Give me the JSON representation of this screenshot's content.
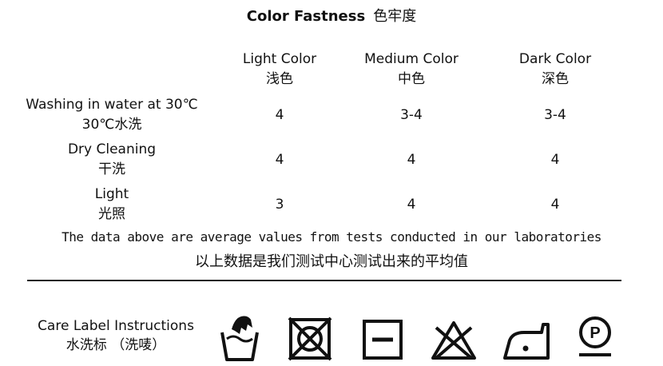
{
  "title": {
    "en": "Color Fastness",
    "zh": "色牢度"
  },
  "table": {
    "headers": [
      {
        "en": "",
        "zh": ""
      },
      {
        "en": "Light Color",
        "zh": "浅色"
      },
      {
        "en": "Medium Color",
        "zh": "中色"
      },
      {
        "en": "Dark Color",
        "zh": "深色"
      }
    ],
    "rows": [
      {
        "en": "Washing in water at 30℃",
        "zh": "30℃水洗",
        "values": [
          "4",
          "3-4",
          "3-4"
        ]
      },
      {
        "en": "Dry Cleaning",
        "zh": "干洗",
        "values": [
          "4",
          "4",
          "4"
        ]
      },
      {
        "en": "Light",
        "zh": "光照",
        "values": [
          "3",
          "4",
          "4"
        ]
      }
    ]
  },
  "note": {
    "en": "The data above are average values from tests conducted in our laboratories",
    "zh": "以上数据是我们测试中心测试出来的平均值"
  },
  "care": {
    "label_en": "Care Label Instructions",
    "label_zh": "水洗标 （洗唛）",
    "icons": [
      "hand-wash-icon",
      "do-not-tumble-dry-icon",
      "dry-flat-icon",
      "do-not-bleach-icon",
      "iron-low-heat-icon",
      "professional-dry-clean-p-icon"
    ],
    "p_letter": "P"
  }
}
